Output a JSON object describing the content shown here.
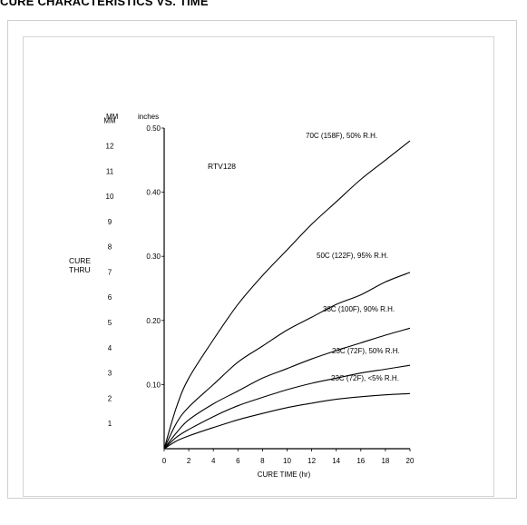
{
  "page": {
    "heading": "CURE CHARACTERISTICS VS. TIME"
  },
  "chart_data": {
    "type": "line",
    "title": "",
    "annotation": "RTV128",
    "xlabel": "CURE TIME (hr)",
    "ylabel": "CURE THRU",
    "y_unit_left": "MM",
    "y_unit_right": "inches",
    "xlim": [
      0,
      20
    ],
    "ylim": [
      0,
      0.5
    ],
    "x_ticks": [
      0,
      2,
      4,
      6,
      8,
      10,
      12,
      14,
      16,
      18,
      20
    ],
    "y_ticks": [
      {
        "value": 0.1,
        "label": "0.10"
      },
      {
        "value": 0.2,
        "label": "0.20"
      },
      {
        "value": 0.3,
        "label": "0.30"
      },
      {
        "value": 0.4,
        "label": "0.40"
      },
      {
        "value": 0.5,
        "label": "0.50"
      }
    ],
    "mm_ticks": [
      {
        "value": 1,
        "label": "1"
      },
      {
        "value": 2,
        "label": "2"
      },
      {
        "value": 3,
        "label": "3"
      },
      {
        "value": 4,
        "label": "4"
      },
      {
        "value": 5,
        "label": "5"
      },
      {
        "value": 6,
        "label": "6"
      },
      {
        "value": 7,
        "label": "7"
      },
      {
        "value": 8,
        "label": "8"
      },
      {
        "value": 9,
        "label": "9"
      },
      {
        "value": 10,
        "label": "10"
      },
      {
        "value": 11,
        "label": "11"
      },
      {
        "value": 12,
        "label": "12"
      },
      {
        "value": 13,
        "label": "MM"
      }
    ],
    "grid": false,
    "legend": "none",
    "series": [
      {
        "name": "70C (158F), 50% R.H.",
        "x": [
          0,
          1,
          2,
          4,
          6,
          8,
          10,
          12,
          14,
          16,
          18,
          20
        ],
        "y": [
          0,
          0.065,
          0.11,
          0.17,
          0.225,
          0.27,
          0.31,
          0.35,
          0.385,
          0.42,
          0.45,
          0.48
        ]
      },
      {
        "name": "50C (122F), 95% R.H.",
        "x": [
          0,
          1,
          2,
          4,
          6,
          8,
          10,
          12,
          14,
          16,
          18,
          20
        ],
        "y": [
          0,
          0.04,
          0.065,
          0.1,
          0.135,
          0.16,
          0.185,
          0.205,
          0.225,
          0.24,
          0.26,
          0.275
        ]
      },
      {
        "name": "38C (100F), 90% R.H.",
        "x": [
          0,
          1,
          2,
          4,
          6,
          8,
          10,
          12,
          14,
          16,
          18,
          20
        ],
        "y": [
          0,
          0.025,
          0.045,
          0.07,
          0.09,
          0.11,
          0.125,
          0.14,
          0.153,
          0.165,
          0.177,
          0.188
        ]
      },
      {
        "name": "23C (72F), 50% R.H.",
        "x": [
          0,
          1,
          2,
          4,
          6,
          8,
          10,
          12,
          14,
          16,
          18,
          20
        ],
        "y": [
          0,
          0.018,
          0.03,
          0.05,
          0.067,
          0.08,
          0.092,
          0.102,
          0.11,
          0.118,
          0.124,
          0.13
        ]
      },
      {
        "name": "23C (72F), <5% R.H.",
        "x": [
          0,
          1,
          2,
          4,
          6,
          8,
          10,
          12,
          14,
          16,
          18,
          20
        ],
        "y": [
          0,
          0.012,
          0.02,
          0.033,
          0.045,
          0.055,
          0.064,
          0.071,
          0.077,
          0.081,
          0.084,
          0.086
        ]
      }
    ]
  }
}
